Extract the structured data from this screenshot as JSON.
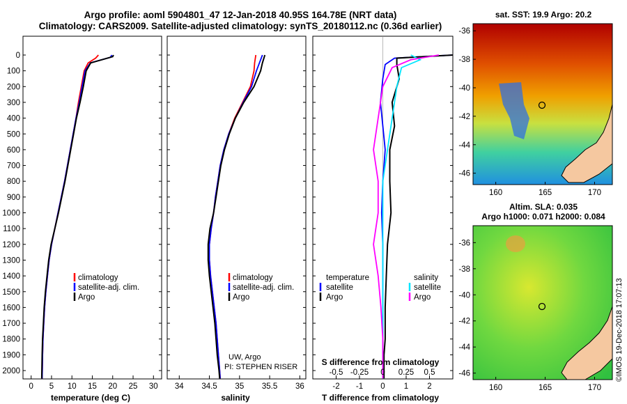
{
  "title_line1": "Argo profile: aoml 5904801_47 12-Jan-2018 40.95S 164.78E (NRT data)",
  "title_line2": "Climatology: CARS2009. Satellite-adjusted climatology: synTS_20180112.nc (0.36d earlier)",
  "sst_title": "sat. SST: 19.9 Argo: 20.2",
  "sla_title1": "Altim. SLA: 0.035",
  "sla_title2": "Argo h1000: 0.071 h2000: 0.084",
  "credit_uw": "UW, Argo",
  "credit_pi": "PI: STEPHEN RISER",
  "vertical_stamp": "©IMOS 19-Dec-2018 17:07:13",
  "colors": {
    "climatology": "#ff0000",
    "satellite": "#0000ff",
    "argo": "#000000",
    "sat_salinity": "#00e5ff",
    "argo_salinity": "#ff00ff",
    "land": "#f5c8a0"
  },
  "depth_ticks": [
    "0",
    "100",
    "200",
    "300",
    "400",
    "500",
    "600",
    "700",
    "800",
    "900",
    "1000",
    "1100",
    "1200",
    "1300",
    "1400",
    "1500",
    "1600",
    "1700",
    "1800",
    "1900",
    "2000"
  ],
  "legend1": {
    "climatology": "climatology",
    "satellite": "satellite-adj. clim.",
    "argo": "Argo"
  },
  "legend3": {
    "temperature": "temperature",
    "salinity": "salinity",
    "satellite": "satellite",
    "argo": "Argo"
  },
  "diff_s_label": "S difference from climatology",
  "map_lat_ticks": [
    "-36",
    "-38",
    "-40",
    "-42",
    "-44",
    "-46"
  ],
  "map_lon_ticks": [
    "160",
    "165",
    "170"
  ],
  "argo_position": {
    "lat": -40.95,
    "lon": 164.78
  },
  "chart_data": [
    {
      "type": "line",
      "xlabel": "temperature (deg C)",
      "ylabel": "",
      "xlim": [
        -2,
        32
      ],
      "ylim": [
        2050,
        0
      ],
      "xticks": [
        "0",
        "5",
        "10",
        "15",
        "20",
        "25",
        "30"
      ],
      "series": [
        {
          "name": "climatology",
          "x": [
            16.5,
            15.8,
            14.0,
            13.0,
            12.3,
            11.6,
            11.0,
            10.3,
            9.6,
            8.9,
            8.2,
            7.4,
            6.6,
            5.8,
            5.0,
            4.4,
            4.0,
            3.6,
            3.3,
            3.1,
            2.9,
            2.8,
            2.7
          ],
          "y": [
            0,
            20,
            50,
            100,
            200,
            300,
            400,
            500,
            600,
            700,
            800,
            900,
            1000,
            1100,
            1200,
            1300,
            1400,
            1500,
            1600,
            1700,
            1800,
            1900,
            2050
          ]
        },
        {
          "name": "satellite-adj. clim.",
          "x": [
            19.8,
            19.4,
            14.5,
            13.2,
            12.5,
            11.8,
            11.0,
            10.3,
            9.6,
            8.9,
            8.2,
            7.4,
            6.6,
            5.8,
            5.0,
            4.4,
            4.0,
            3.6,
            3.3,
            3.1,
            2.9,
            2.8,
            2.7
          ],
          "y": [
            0,
            15,
            50,
            100,
            200,
            300,
            400,
            500,
            600,
            700,
            800,
            900,
            1000,
            1100,
            1200,
            1300,
            1400,
            1500,
            1600,
            1700,
            1800,
            1900,
            2050
          ]
        },
        {
          "name": "Argo",
          "x": [
            20.2,
            20.0,
            14.6,
            13.5,
            12.8,
            12.0,
            11.1,
            10.4,
            9.7,
            9.0,
            8.3,
            7.5,
            6.7,
            5.8,
            4.9,
            4.3,
            3.9,
            3.5,
            3.2,
            3.0,
            2.8,
            2.7,
            2.6
          ],
          "y": [
            0,
            10,
            50,
            100,
            200,
            300,
            400,
            500,
            600,
            700,
            800,
            900,
            1000,
            1100,
            1200,
            1300,
            1400,
            1500,
            1600,
            1700,
            1800,
            1900,
            2050
          ]
        }
      ]
    },
    {
      "type": "line",
      "xlabel": "salinity",
      "ylabel": "",
      "xlim": [
        33.8,
        36.1
      ],
      "ylim": [
        2050,
        0
      ],
      "xticks": [
        "34",
        "34.5",
        "35",
        "35.5",
        "36"
      ],
      "series": [
        {
          "name": "climatology",
          "x": [
            35.27,
            35.25,
            35.24,
            35.18,
            35.05,
            34.92,
            34.82,
            34.74,
            34.68,
            34.64,
            34.6,
            34.57,
            34.53,
            34.5,
            34.5,
            34.52,
            34.55,
            34.58,
            34.61,
            34.63,
            34.65,
            34.67,
            34.68
          ],
          "y": [
            0,
            50,
            100,
            200,
            300,
            400,
            500,
            600,
            700,
            800,
            900,
            1000,
            1100,
            1200,
            1300,
            1400,
            1500,
            1600,
            1700,
            1800,
            1900,
            2000,
            2050
          ]
        },
        {
          "name": "satellite-adj. clim.",
          "x": [
            35.38,
            35.33,
            35.28,
            35.2,
            35.06,
            34.93,
            34.82,
            34.74,
            34.68,
            34.64,
            34.6,
            34.57,
            34.53,
            34.5,
            34.5,
            34.52,
            34.55,
            34.58,
            34.61,
            34.63,
            34.65,
            34.67,
            34.68
          ],
          "y": [
            0,
            50,
            100,
            200,
            300,
            400,
            500,
            600,
            700,
            800,
            900,
            1000,
            1100,
            1200,
            1300,
            1400,
            1500,
            1600,
            1700,
            1800,
            1900,
            2000,
            2050
          ]
        },
        {
          "name": "Argo",
          "x": [
            35.42,
            35.38,
            35.35,
            35.24,
            35.07,
            34.93,
            34.83,
            34.75,
            34.69,
            34.65,
            34.61,
            34.57,
            34.51,
            34.48,
            34.48,
            34.5,
            34.53,
            34.56,
            34.59,
            34.61,
            34.63,
            34.66,
            34.67
          ],
          "y": [
            0,
            50,
            100,
            200,
            300,
            400,
            500,
            600,
            700,
            800,
            900,
            1000,
            1100,
            1200,
            1300,
            1400,
            1500,
            1600,
            1700,
            1800,
            1900,
            2000,
            2050
          ]
        }
      ]
    },
    {
      "type": "line",
      "xlabel": "T difference from climatology",
      "ylabel": "",
      "xlim": [
        -3,
        3
      ],
      "ylim": [
        2050,
        0
      ],
      "xticks": [
        "-2",
        "-1",
        "0",
        "1",
        "2"
      ],
      "xticks_top": [
        "-0.5",
        "-0.25",
        "0",
        "0.25",
        "0.5"
      ],
      "series": [
        {
          "name": "temperature satellite",
          "x": [
            3.0,
            0.5,
            0.1,
            0.0,
            -0.1,
            0.0,
            0.1,
            0.0,
            -0.05,
            0.0,
            0.0,
            0.0,
            0.0,
            0.0,
            0.0
          ],
          "y": [
            0,
            20,
            60,
            150,
            300,
            450,
            600,
            800,
            1000,
            1200,
            1400,
            1600,
            1800,
            1900,
            2050
          ]
        },
        {
          "name": "temperature Argo",
          "x": [
            3.5,
            0.6,
            0.6,
            0.7,
            0.4,
            0.5,
            0.3,
            0.3,
            0.35,
            0.2,
            0.15,
            0.1,
            0.1,
            0.05,
            0.05
          ],
          "y": [
            0,
            20,
            60,
            150,
            300,
            450,
            600,
            800,
            1000,
            1200,
            1400,
            1600,
            1800,
            1900,
            2050
          ]
        },
        {
          "name": "salinity satellite",
          "x": [
            0.3,
            0.4,
            0.2,
            0.15,
            0.1,
            0.05,
            0.0,
            0.0,
            0.0,
            0.0,
            0.0,
            0.0,
            0.0
          ],
          "y": [
            0,
            30,
            80,
            200,
            400,
            600,
            800,
            1000,
            1200,
            1400,
            1600,
            1800,
            2050
          ]
        },
        {
          "name": "salinity Argo",
          "x": [
            0.6,
            0.3,
            0.1,
            0.0,
            -0.05,
            -0.1,
            -0.05,
            -0.05,
            -0.1,
            -0.05,
            -0.02,
            0.0,
            0.0
          ],
          "y": [
            0,
            30,
            80,
            200,
            400,
            600,
            800,
            1000,
            1200,
            1400,
            1600,
            1800,
            2050
          ]
        }
      ]
    }
  ]
}
